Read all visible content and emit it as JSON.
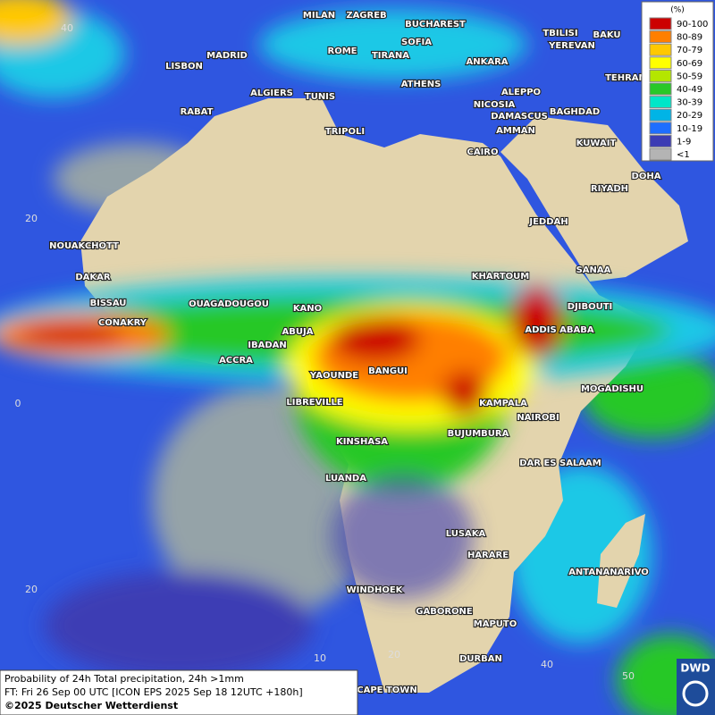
{
  "legend": {
    "title": "(%)",
    "entries": [
      {
        "label": "90-100",
        "color": "#cc0000"
      },
      {
        "label": "80-89",
        "color": "#ff7f00"
      },
      {
        "label": "70-79",
        "color": "#ffc800"
      },
      {
        "label": "60-69",
        "color": "#ffff00"
      },
      {
        "label": "50-59",
        "color": "#b4e600"
      },
      {
        "label": "40-49",
        "color": "#28c828"
      },
      {
        "label": "30-39",
        "color": "#00e6c8"
      },
      {
        "label": "20-29",
        "color": "#00b4e6"
      },
      {
        "label": "10-19",
        "color": "#1e6eff"
      },
      {
        "label": "1-9",
        "color": "#3c3cb4"
      },
      {
        "label": "<1",
        "color": "#b4b4b4"
      }
    ]
  },
  "map": {
    "cities": [
      "MILAN",
      "ZAGREB",
      "BUCHAREST",
      "SOFIA",
      "ROME",
      "TIRANA",
      "ANKARA",
      "TBILISI",
      "YEREVAN",
      "BAKU",
      "LISBON",
      "MADRID",
      "TEHRAN",
      "ALGIERS",
      "TUNIS",
      "ATHENS",
      "ALEPPO",
      "NICOSIA",
      "DAMASCUS",
      "BAGHDAD",
      "RABAT",
      "AMMAN",
      "TRIPOLI",
      "CAIRO",
      "KUWAIT",
      "DOHA",
      "RIYADH",
      "JEDDAH",
      "NOUAKCHOTT",
      "SANAA",
      "KHARTOUM",
      "DAKAR",
      "DJIBOUTI",
      "BISSAU",
      "OUAGADOUGOU",
      "KANO",
      "CONAKRY",
      "ABUJA",
      "ADDIS ABABA",
      "IBADAN",
      "ACCRA",
      "BANGUI",
      "YAOUNDE",
      "MOGADISHU",
      "LIBREVILLE",
      "KAMPALA",
      "NAIROBI",
      "BUJUMBURA",
      "KINSHASA",
      "DAR ES SALAAM",
      "LUANDA",
      "LUSAKA",
      "HARARE",
      "ANTANANARIVO",
      "WINDHOEK",
      "GABORONE",
      "MAPUTO",
      "DURBAN",
      "CAPE TOWN"
    ],
    "latitude_labels": [
      "40",
      "20",
      "0",
      "20"
    ],
    "longitude_labels": [
      "10",
      "20",
      "40",
      "50"
    ]
  },
  "footer": {
    "lines": [
      "Probability of 24h Total precipitation, 24h >1mm",
      "FT: Fri 26 Sep 00 UTC [ICON EPS 2025 Sep 18 12UTC +180h]",
      "©2025 Deutscher Wetterdienst"
    ]
  },
  "logo": "DWD"
}
